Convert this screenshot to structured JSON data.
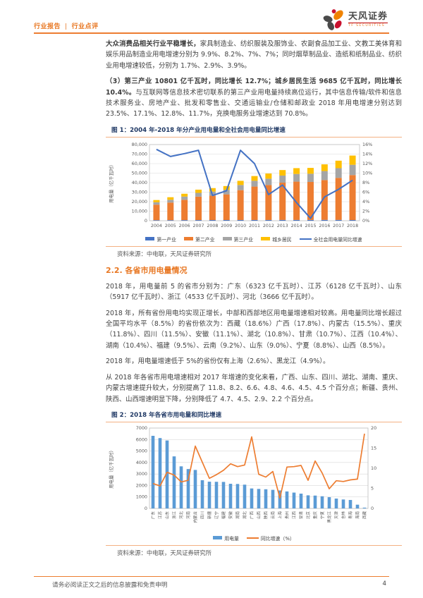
{
  "header": {
    "left_label_1": "行业报告",
    "left_sep": "|",
    "left_label_2": "行业点评",
    "brand_cn": "天风证券",
    "brand_en": "TF SECURITIES"
  },
  "paragraphs": {
    "p1_bold": "大众消费品相关行业平稳增长，",
    "p1_rest": "家具制造业、纺织服装及服饰业、农副食品加工业、文教工美体育和娱乐用品制造业用电增速分别为 9.9%、8.2%、7%、7%；同时烟草制品业、造纸和纸制品业、纺织业用电增速较低，分别为 1.7%、2.9%、3.9%。",
    "p2_bold": "（3）第三产业 10801 亿千瓦时，同比增长 12.7%；城乡居民生活 9685 亿千瓦时，同比增长 10.4%。",
    "p2_rest": "与互联网等信息技术密切联系的第三产业用电量持续高位运行，其中信息传输/软件和信息技术服务业、房地产业、批发和零售业、交通运输业/仓储和邮政业 2018 年用电增速分别达到 23.5%、17.1%、12.8%、11.7%，充换电服务业增速达到 70.8%。",
    "p3": "2018 年，用电量前 5 的省市分别为：广东（6323 亿千瓦时）、江苏（6128 亿千瓦时）、山东（5917 亿千瓦时）、浙江（4533 亿千瓦时）、河北（3666 亿千瓦时）。",
    "p4": "2018 年，所有省份用电均实现正增长，中部和西部地区用电量增速相对较高。用电量同比增长超过全国平均水平（8.5%）的省份依次为：西藏（18.6%）广西（17.8%）、内蒙古（15.5%）、重庆（11.8%）、四川（11.5%）、安徽（11.1%）、湖北（10.8%）、甘肃（10.7%）、江西（10.4%）、湖南（10.4%）、福建（9.5%）、云南（9.2%）、山东（9.0%）、宁夏（8.8%）、山西（8.5%）。",
    "p5": "2018 年，用电量增速低于 5%的省份仅有上海（2.6%）、黑龙江（4.9%）。",
    "p6": "从 2018 年各省市用电增速相对 2017 年增速的变化来看，广西、山东、四川、湖北、湖南、重庆、内蒙古增速提升较大，分别提高了 11.8、8.2、6.6、4.8、4.6、4.5、4.5 个百分点；新疆、贵州、陕西、山西增速明显下降，分别降低了 4.7、4.5、2.9、2.2 个百分点。"
  },
  "section": {
    "title": "2.2. 各省市用电量情况"
  },
  "figure1": {
    "caption": "图 1：2004 年-2018 年分产业用电量和全社会用电量同比增速",
    "source": "资料来源：中电联，天风证券研究所"
  },
  "figure2": {
    "caption": "图 2：2018 年各省市用电量和同比增速",
    "source": "资料来源：中电联，天风证券研究所"
  },
  "footer": {
    "disclaimer": "请务必阅读正文之后的信息披露和免责申明",
    "page": "4"
  },
  "colors": {
    "accent_orange": "#E87722",
    "rule_orange": "#ED7D31",
    "hairline_orange": "#F4B183",
    "caption_navy": "#1F3864",
    "bar_blue_s1": "#4472C4",
    "bar_orange_s2": "#ED7D31",
    "bar_gray_s3": "#A5A5A5",
    "bar_yellow_s4": "#FFC000",
    "line_blue": "#4472C4",
    "bar_lightblue": "#5B9BD5",
    "line_orange": "#ED7D31"
  },
  "chart_data": [
    {
      "type": "bar",
      "subtype": "stacked-bar-with-line",
      "title": "2004 年-2018 年分产业用电量和全社会用电量同比增速",
      "categories": [
        "2004",
        "2005",
        "2006",
        "2007",
        "2008",
        "2009",
        "2010",
        "2011",
        "2012",
        "2013",
        "2014",
        "2015",
        "2016",
        "2017",
        "2018"
      ],
      "series": [
        {
          "name": "第一产业",
          "type": "bar",
          "color": "#4472C4",
          "values": [
            590,
            630,
            670,
            710,
            730,
            750,
            780,
            790,
            800,
            830,
            850,
            870,
            880,
            890,
            728
          ]
        },
        {
          "name": "第二产业",
          "type": "bar",
          "color": "#ED7D31",
          "values": [
            16280,
            18450,
            21290,
            24580,
            25540,
            26940,
            31320,
            35080,
            36690,
            39140,
            40210,
            39860,
            41810,
            44130,
            47235
          ]
        },
        {
          "name": "第三产业",
          "type": "bar",
          "color": "#A5A5A5",
          "values": [
            2580,
            2960,
            3440,
            3980,
            4340,
            4850,
            5430,
            6070,
            6680,
            7470,
            8060,
            8640,
            9490,
            10180,
            10801
          ]
        },
        {
          "name": "城乡居民",
          "type": "bar",
          "color": "#FFC000",
          "values": [
            2285,
            2649,
            2944,
            3362,
            3658,
            3890,
            4393,
            4988,
            5421,
            5783,
            6113,
            6130,
            7018,
            7877,
            9685
          ]
        },
        {
          "name": "全社会用电量同比增速",
          "type": "line",
          "color": "#4472C4",
          "axis": "right",
          "values": [
            15.0,
            13.5,
            14.1,
            14.8,
            5.3,
            6.3,
            14.8,
            12.0,
            5.5,
            7.5,
            3.8,
            0.5,
            5.0,
            6.6,
            8.5
          ]
        }
      ],
      "ylabel": "用电量（亿千瓦时）",
      "y_left": {
        "min": 0,
        "max": 80000,
        "step": 10000,
        "comma": true
      },
      "y_right": {
        "min": 0,
        "max": 16,
        "step": 2,
        "suffix": "%"
      },
      "grid": true,
      "legend_position": "bottom"
    },
    {
      "type": "bar",
      "subtype": "bar-with-line",
      "title": "2018 年各省市用电量和同比增速",
      "categories": [
        "广东",
        "江苏",
        "山东",
        "浙江",
        "河北",
        "河南",
        "内蒙古",
        "四川",
        "新疆",
        "辽宁",
        "福建",
        "安徽",
        "湖南",
        "湖北",
        "广西",
        "山西",
        "陕西",
        "云南",
        "上海",
        "贵州",
        "江西",
        "甘肃",
        "北京",
        "重庆",
        "宁夏",
        "黑龙江",
        "天津",
        "吉林",
        "青海",
        "海南",
        "西藏"
      ],
      "series": [
        {
          "name": "用电量",
          "type": "bar",
          "color": "#5B9BD5",
          "values": [
            6323,
            6128,
            5917,
            4533,
            3666,
            3430,
            3353,
            2459,
            2330,
            2320,
            2310,
            2148,
            2130,
            2071,
            1740,
            1700,
            1670,
            1620,
            1567,
            1480,
            1380,
            1290,
            1142,
            1120,
            1060,
            980,
            861,
            781,
            738,
            327,
            70
          ]
        },
        {
          "name": "同比增速（%）",
          "type": "line",
          "color": "#ED7D31",
          "axis": "right",
          "values": [
            6.2,
            5.6,
            9.0,
            8.3,
            6.6,
            7.0,
            15.5,
            11.5,
            7.5,
            8.4,
            9.5,
            11.1,
            10.4,
            10.8,
            17.8,
            8.5,
            7.8,
            9.2,
            2.6,
            10.3,
            10.4,
            10.7,
            7.0,
            11.8,
            8.8,
            4.9,
            6.9,
            6.7,
            7.1,
            7.3,
            18.6
          ]
        }
      ],
      "ylabel": "用电量（亿千瓦时）",
      "y_left": {
        "min": 0,
        "max": 7000,
        "step": 1000,
        "comma": false
      },
      "y_right": {
        "min": 0,
        "max": 20,
        "step": 5,
        "suffix": ""
      },
      "grid": true,
      "legend_position": "bottom"
    }
  ]
}
